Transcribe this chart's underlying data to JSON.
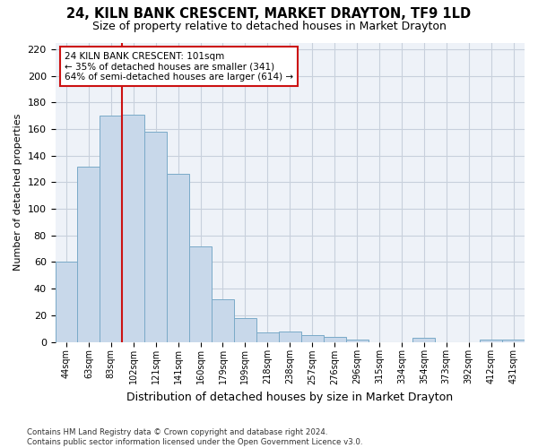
{
  "title1": "24, KILN BANK CRESCENT, MARKET DRAYTON, TF9 1LD",
  "title2": "Size of property relative to detached houses in Market Drayton",
  "xlabel": "Distribution of detached houses by size in Market Drayton",
  "ylabel": "Number of detached properties",
  "categories": [
    "44sqm",
    "63sqm",
    "83sqm",
    "102sqm",
    "121sqm",
    "141sqm",
    "160sqm",
    "179sqm",
    "199sqm",
    "218sqm",
    "238sqm",
    "257sqm",
    "276sqm",
    "296sqm",
    "315sqm",
    "334sqm",
    "354sqm",
    "373sqm",
    "392sqm",
    "412sqm",
    "431sqm"
  ],
  "values": [
    60,
    132,
    170,
    171,
    158,
    126,
    72,
    32,
    18,
    7,
    8,
    5,
    4,
    2,
    0,
    0,
    3,
    0,
    0,
    2,
    2
  ],
  "bar_color": "#c8d8ea",
  "bar_edge_color": "#7aaac8",
  "vline_color": "#cc1111",
  "annotation_text": "24 KILN BANK CRESCENT: 101sqm\n← 35% of detached houses are smaller (341)\n64% of semi-detached houses are larger (614) →",
  "annotation_box_facecolor": "#ffffff",
  "annotation_box_edgecolor": "#cc1111",
  "ylim": [
    0,
    225
  ],
  "yticks": [
    0,
    20,
    40,
    60,
    80,
    100,
    120,
    140,
    160,
    180,
    200,
    220
  ],
  "fig_facecolor": "#ffffff",
  "ax_facecolor": "#eef2f8",
  "grid_color": "#c8d0dc",
  "footnote": "Contains HM Land Registry data © Crown copyright and database right 2024.\nContains public sector information licensed under the Open Government Licence v3.0."
}
